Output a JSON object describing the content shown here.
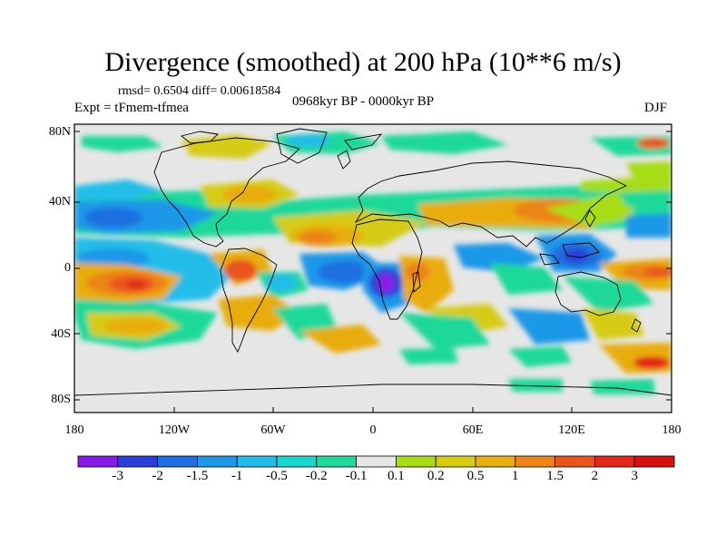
{
  "title": "Divergence (smoothed) at 200 hPa (10**6 m/s)",
  "stats": "rmsd= 0.6504 diff= 0.00618584",
  "experiment": "Expt = tFmem-tfmea",
  "period": "0968kyr BP - 0000kyr BP",
  "season": "DJF",
  "axes": {
    "lat_labels": [
      "80N",
      "40N",
      "0",
      "40S",
      "80S"
    ],
    "lon_labels": [
      "180",
      "120W",
      "60W",
      "0",
      "60E",
      "120E",
      "180"
    ]
  },
  "colorbar": {
    "labels": [
      "-3",
      "-2",
      "-1.5",
      "-1",
      "-0.5",
      "-0.2",
      "-0.1",
      "0.1",
      "0.2",
      "0.5",
      "1",
      "1.5",
      "2",
      "3"
    ],
    "colors": [
      "#8a1ae8",
      "#2a3fd8",
      "#1f6fe0",
      "#1f98e8",
      "#20bde8",
      "#1ad6d0",
      "#1fd99a",
      "#e6e6e6",
      "#a6dd14",
      "#d6cc12",
      "#e8ad10",
      "#ec8418",
      "#e9551a",
      "#e22618",
      "#d6100f"
    ]
  }
}
